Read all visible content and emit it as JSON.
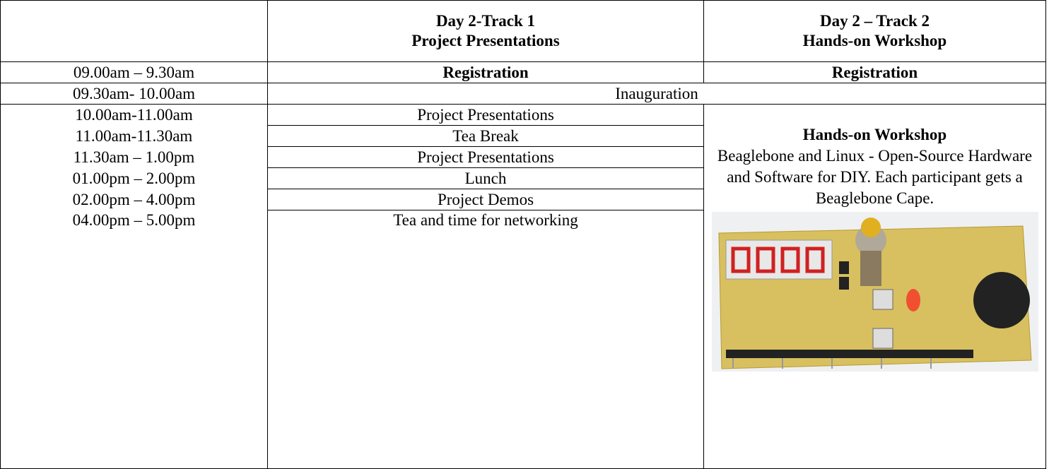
{
  "table": {
    "columns": [
      {
        "title": "Day 2-Track 1",
        "subtitle": "Project Presentations"
      },
      {
        "title": "Day 2 – Track 2",
        "subtitle": "Hands-on Workshop"
      }
    ],
    "rows": [
      {
        "time": "09.00am – 9.30am",
        "track1": "Registration",
        "track2": "Registration"
      },
      {
        "time": "09.30am- 10.00am",
        "all": "Inauguration"
      },
      {
        "time": "10.00am-11.00am",
        "track1": "Project Presentations"
      },
      {
        "time": "11.00am-11.30am",
        "track1": "Tea Break"
      },
      {
        "time": "11.30am – 1.00pm",
        "track1": "Project Presentations"
      },
      {
        "time": "01.00pm – 2.00pm",
        "track1": "Lunch"
      },
      {
        "time": "02.00pm – 4.00pm",
        "track1": "Project Demos"
      },
      {
        "time": "04.00pm – 5.00pm",
        "track1": "Tea and time for networking"
      }
    ],
    "workshop": {
      "title": "Hands-on Workshop",
      "description": "Beaglebone and Linux - Open-Source Hardware and Software for DIY. Each participant gets a Beaglebone Cape."
    }
  }
}
